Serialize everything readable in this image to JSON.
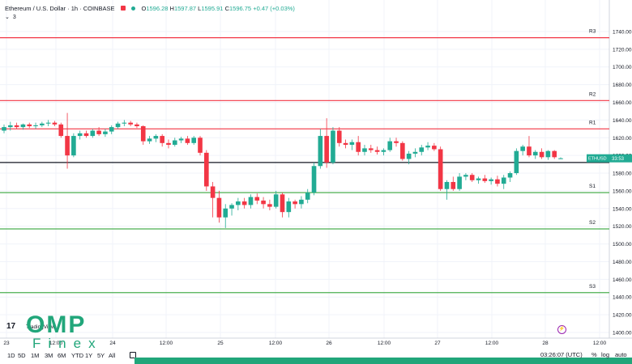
{
  "header": {
    "symbol": "Ethereum / U.S. Dollar · 1h · COINBASE",
    "ohlc_o": "1596.28",
    "ohlc_h": "1597.87",
    "ohlc_l": "1595.91",
    "ohlc_c": "1596.75",
    "change": "+0.47 (+0.03%)"
  },
  "indicator": {
    "count": "3"
  },
  "levels": [
    {
      "label": "R3",
      "value": 1733,
      "color": "#f23645"
    },
    {
      "label": "R2",
      "value": 1662,
      "color": "#f23645"
    },
    {
      "label": "R1",
      "value": 1630,
      "color": "#f23645"
    },
    {
      "label": "S1",
      "value": 1558,
      "color": "#4caf50"
    },
    {
      "label": "S2",
      "value": 1517,
      "color": "#4caf50"
    },
    {
      "label": "S3",
      "value": 1445,
      "color": "#4caf50"
    }
  ],
  "pivot": 1592,
  "price_tag": {
    "symbol": "ETHUSD",
    "countdown": "33:53",
    "value": 1596.75
  },
  "y_ticks": [
    "1740.00",
    "1720.00",
    "1700.00",
    "1680.00",
    "1660.00",
    "1640.00",
    "1620.00",
    "1600.00",
    "1580.00",
    "1560.00",
    "1540.00",
    "1520.00",
    "1500.00",
    "1480.00",
    "1460.00",
    "1440.00",
    "1420.00",
    "1400.00"
  ],
  "x_ticks": [
    "23",
    "12:00",
    "24",
    "12:00",
    "25",
    "12:00",
    "26",
    "12:00",
    "27",
    "12:00",
    "28",
    "12:00"
  ],
  "chart_data": {
    "type": "candlestick",
    "ylim": [
      1400,
      1750
    ],
    "candles": [
      {
        "o": 1628,
        "h": 1635,
        "l": 1625,
        "c": 1632
      },
      {
        "o": 1632,
        "h": 1638,
        "l": 1628,
        "c": 1634
      },
      {
        "o": 1634,
        "h": 1637,
        "l": 1630,
        "c": 1632
      },
      {
        "o": 1632,
        "h": 1636,
        "l": 1629,
        "c": 1635
      },
      {
        "o": 1635,
        "h": 1637,
        "l": 1631,
        "c": 1633
      },
      {
        "o": 1633,
        "h": 1637,
        "l": 1630,
        "c": 1634
      },
      {
        "o": 1634,
        "h": 1638,
        "l": 1632,
        "c": 1636
      },
      {
        "o": 1636,
        "h": 1640,
        "l": 1633,
        "c": 1637
      },
      {
        "o": 1637,
        "h": 1639,
        "l": 1633,
        "c": 1635
      },
      {
        "o": 1635,
        "h": 1637,
        "l": 1620,
        "c": 1622
      },
      {
        "o": 1622,
        "h": 1648,
        "l": 1585,
        "c": 1600
      },
      {
        "o": 1600,
        "h": 1625,
        "l": 1598,
        "c": 1622
      },
      {
        "o": 1622,
        "h": 1628,
        "l": 1618,
        "c": 1625
      },
      {
        "o": 1625,
        "h": 1628,
        "l": 1620,
        "c": 1622
      },
      {
        "o": 1622,
        "h": 1630,
        "l": 1620,
        "c": 1628
      },
      {
        "o": 1628,
        "h": 1632,
        "l": 1622,
        "c": 1624
      },
      {
        "o": 1624,
        "h": 1630,
        "l": 1621,
        "c": 1627
      },
      {
        "o": 1627,
        "h": 1634,
        "l": 1624,
        "c": 1632
      },
      {
        "o": 1632,
        "h": 1638,
        "l": 1630,
        "c": 1636
      },
      {
        "o": 1636,
        "h": 1640,
        "l": 1633,
        "c": 1637
      },
      {
        "o": 1637,
        "h": 1639,
        "l": 1633,
        "c": 1635
      },
      {
        "o": 1635,
        "h": 1637,
        "l": 1631,
        "c": 1633
      },
      {
        "o": 1633,
        "h": 1634,
        "l": 1612,
        "c": 1616
      },
      {
        "o": 1616,
        "h": 1622,
        "l": 1613,
        "c": 1619
      },
      {
        "o": 1619,
        "h": 1624,
        "l": 1615,
        "c": 1622
      },
      {
        "o": 1622,
        "h": 1624,
        "l": 1610,
        "c": 1614
      },
      {
        "o": 1614,
        "h": 1618,
        "l": 1608,
        "c": 1612
      },
      {
        "o": 1612,
        "h": 1620,
        "l": 1610,
        "c": 1617
      },
      {
        "o": 1617,
        "h": 1621,
        "l": 1614,
        "c": 1619
      },
      {
        "o": 1619,
        "h": 1622,
        "l": 1612,
        "c": 1614
      },
      {
        "o": 1614,
        "h": 1622,
        "l": 1612,
        "c": 1620
      },
      {
        "o": 1620,
        "h": 1622,
        "l": 1600,
        "c": 1603
      },
      {
        "o": 1603,
        "h": 1606,
        "l": 1560,
        "c": 1565
      },
      {
        "o": 1565,
        "h": 1570,
        "l": 1530,
        "c": 1552
      },
      {
        "o": 1552,
        "h": 1560,
        "l": 1524,
        "c": 1530
      },
      {
        "o": 1530,
        "h": 1545,
        "l": 1518,
        "c": 1540
      },
      {
        "o": 1540,
        "h": 1546,
        "l": 1532,
        "c": 1544
      },
      {
        "o": 1544,
        "h": 1552,
        "l": 1538,
        "c": 1548
      },
      {
        "o": 1548,
        "h": 1552,
        "l": 1540,
        "c": 1544
      },
      {
        "o": 1544,
        "h": 1556,
        "l": 1540,
        "c": 1553
      },
      {
        "o": 1553,
        "h": 1557,
        "l": 1545,
        "c": 1549
      },
      {
        "o": 1549,
        "h": 1553,
        "l": 1540,
        "c": 1545
      },
      {
        "o": 1545,
        "h": 1550,
        "l": 1538,
        "c": 1542
      },
      {
        "o": 1542,
        "h": 1560,
        "l": 1540,
        "c": 1556
      },
      {
        "o": 1556,
        "h": 1558,
        "l": 1530,
        "c": 1536
      },
      {
        "o": 1536,
        "h": 1552,
        "l": 1530,
        "c": 1548
      },
      {
        "o": 1548,
        "h": 1550,
        "l": 1540,
        "c": 1545
      },
      {
        "o": 1545,
        "h": 1554,
        "l": 1540,
        "c": 1550
      },
      {
        "o": 1550,
        "h": 1562,
        "l": 1546,
        "c": 1558
      },
      {
        "o": 1558,
        "h": 1592,
        "l": 1555,
        "c": 1588
      },
      {
        "o": 1588,
        "h": 1630,
        "l": 1585,
        "c": 1622
      },
      {
        "o": 1622,
        "h": 1642,
        "l": 1586,
        "c": 1592
      },
      {
        "o": 1592,
        "h": 1632,
        "l": 1590,
        "c": 1628
      },
      {
        "o": 1628,
        "h": 1632,
        "l": 1610,
        "c": 1614
      },
      {
        "o": 1614,
        "h": 1618,
        "l": 1608,
        "c": 1612
      },
      {
        "o": 1612,
        "h": 1618,
        "l": 1606,
        "c": 1615
      },
      {
        "o": 1615,
        "h": 1622,
        "l": 1600,
        "c": 1604
      },
      {
        "o": 1604,
        "h": 1612,
        "l": 1600,
        "c": 1608
      },
      {
        "o": 1608,
        "h": 1612,
        "l": 1603,
        "c": 1606
      },
      {
        "o": 1606,
        "h": 1610,
        "l": 1601,
        "c": 1604
      },
      {
        "o": 1604,
        "h": 1608,
        "l": 1600,
        "c": 1606
      },
      {
        "o": 1606,
        "h": 1620,
        "l": 1604,
        "c": 1616
      },
      {
        "o": 1616,
        "h": 1620,
        "l": 1610,
        "c": 1614
      },
      {
        "o": 1614,
        "h": 1616,
        "l": 1594,
        "c": 1596
      },
      {
        "o": 1596,
        "h": 1605,
        "l": 1590,
        "c": 1602
      },
      {
        "o": 1602,
        "h": 1608,
        "l": 1598,
        "c": 1604
      },
      {
        "o": 1604,
        "h": 1612,
        "l": 1600,
        "c": 1609
      },
      {
        "o": 1609,
        "h": 1615,
        "l": 1606,
        "c": 1611
      },
      {
        "o": 1611,
        "h": 1614,
        "l": 1605,
        "c": 1607
      },
      {
        "o": 1607,
        "h": 1610,
        "l": 1560,
        "c": 1562
      },
      {
        "o": 1562,
        "h": 1572,
        "l": 1550,
        "c": 1570
      },
      {
        "o": 1570,
        "h": 1576,
        "l": 1560,
        "c": 1562
      },
      {
        "o": 1562,
        "h": 1580,
        "l": 1560,
        "c": 1576
      },
      {
        "o": 1576,
        "h": 1580,
        "l": 1572,
        "c": 1578
      },
      {
        "o": 1578,
        "h": 1580,
        "l": 1570,
        "c": 1572
      },
      {
        "o": 1572,
        "h": 1576,
        "l": 1568,
        "c": 1574
      },
      {
        "o": 1574,
        "h": 1578,
        "l": 1569,
        "c": 1571
      },
      {
        "o": 1571,
        "h": 1575,
        "l": 1567,
        "c": 1573
      },
      {
        "o": 1573,
        "h": 1577,
        "l": 1565,
        "c": 1568
      },
      {
        "o": 1568,
        "h": 1578,
        "l": 1562,
        "c": 1575
      },
      {
        "o": 1575,
        "h": 1582,
        "l": 1570,
        "c": 1580
      },
      {
        "o": 1580,
        "h": 1608,
        "l": 1578,
        "c": 1605
      },
      {
        "o": 1605,
        "h": 1612,
        "l": 1600,
        "c": 1610
      },
      {
        "o": 1610,
        "h": 1622,
        "l": 1598,
        "c": 1600
      },
      {
        "o": 1600,
        "h": 1606,
        "l": 1596,
        "c": 1604
      },
      {
        "o": 1604,
        "h": 1608,
        "l": 1596,
        "c": 1598
      },
      {
        "o": 1598,
        "h": 1606,
        "l": 1595,
        "c": 1605
      },
      {
        "o": 1605,
        "h": 1606,
        "l": 1596,
        "c": 1598
      },
      {
        "o": 1596.28,
        "h": 1597.87,
        "l": 1595.91,
        "c": 1596.75
      }
    ]
  },
  "branding": {
    "tv_text": "TradingView",
    "tv_mark": "17",
    "omp": "OMP",
    "finex": "Finex"
  },
  "timeframes": [
    "1D",
    "5D",
    "1M",
    "3M",
    "6M",
    "YTD",
    "1Y",
    "5Y",
    "All"
  ],
  "footer": {
    "time": "03:26:07 (UTC)",
    "percent": "%",
    "log": "log",
    "auto": "auto"
  }
}
